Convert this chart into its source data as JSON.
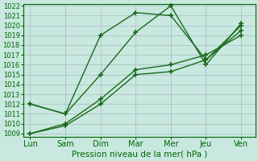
{
  "days": [
    "Lun",
    "Sam",
    "Dim",
    "Mar",
    "Mer",
    "Jeu",
    "Ven"
  ],
  "x_positions": [
    0,
    1,
    2,
    3,
    4,
    5,
    6
  ],
  "line1": [
    1012,
    1011,
    1019,
    1021.3,
    1021,
    1016.5,
    1020
  ],
  "line2": [
    1012,
    1011,
    1015,
    1019.3,
    1022,
    1016,
    1020.2
  ],
  "line3": [
    1009,
    1009.8,
    1012,
    1015,
    1015.3,
    1016.5,
    1019.5
  ],
  "line4": [
    1009,
    1010,
    1012.5,
    1015.5,
    1016,
    1017,
    1019
  ],
  "ylim_min": 1009,
  "ylim_max": 1022,
  "yticks": [
    1009,
    1010,
    1011,
    1012,
    1013,
    1014,
    1015,
    1016,
    1017,
    1018,
    1019,
    1020,
    1021,
    1022
  ],
  "line_color": "#1a6b1a",
  "marker": "+",
  "markersize": 4,
  "linewidth": 1.0,
  "xlabel": "Pression niveau de la mer( hPa )",
  "xlabel_fontsize": 7.5,
  "bg_color": "#c8e8e0",
  "grid_color": "#aabbbb",
  "tick_fontsize": 6,
  "xtick_fontsize": 7
}
